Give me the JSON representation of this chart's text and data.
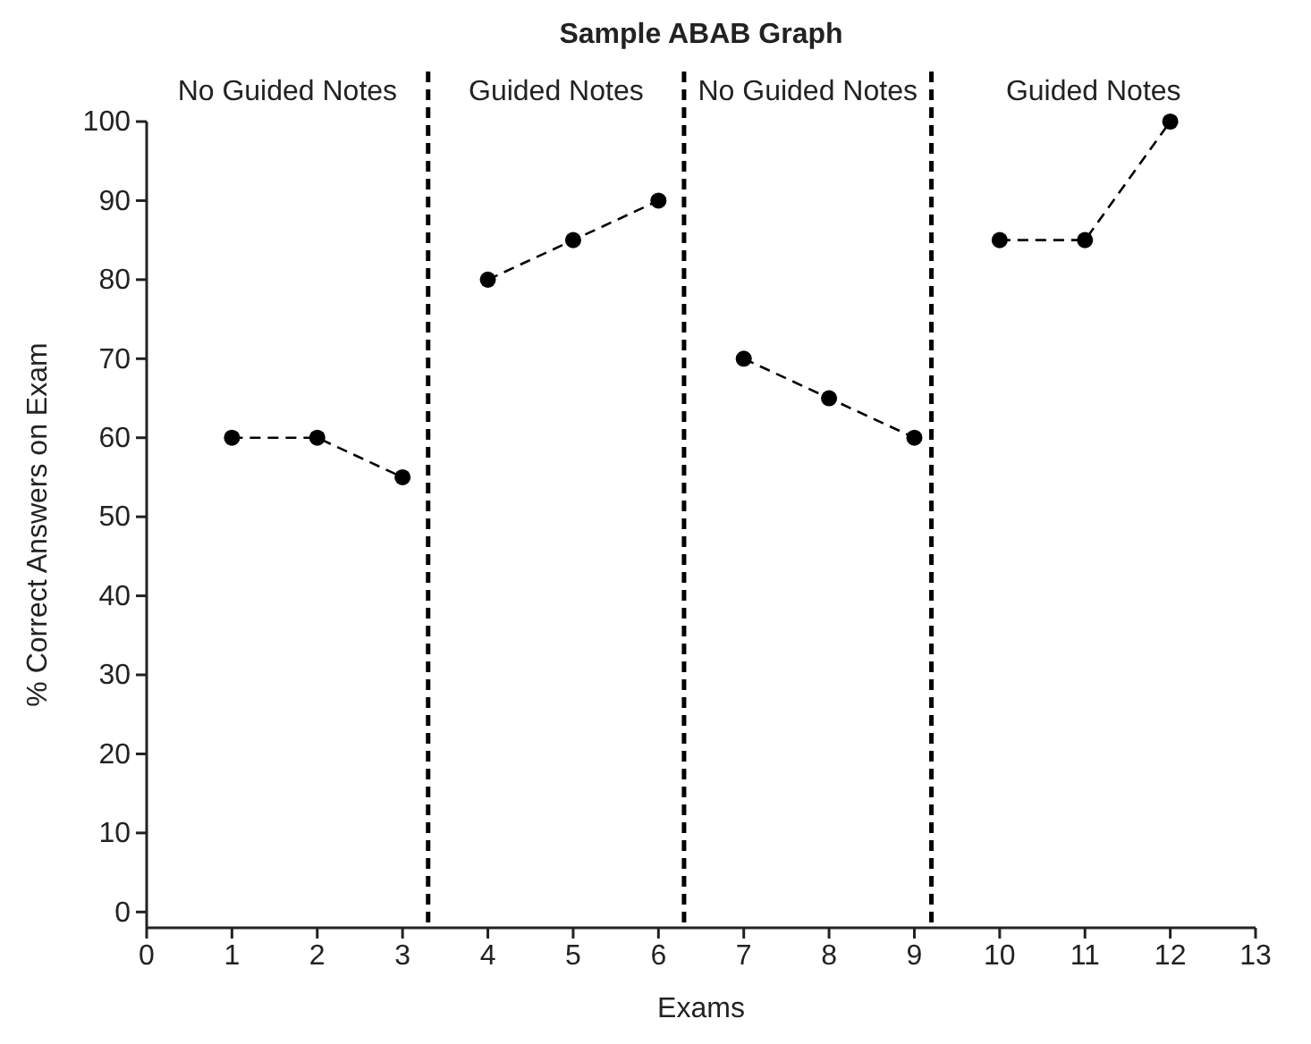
{
  "chart_data": {
    "type": "line",
    "title": "Sample ABAB Graph",
    "xlabel": "Exams",
    "ylabel": "% Correct Answers on Exam",
    "xlim": [
      0,
      13
    ],
    "xticks": [
      0,
      1,
      2,
      3,
      4,
      5,
      6,
      7,
      8,
      9,
      10,
      11,
      12,
      13
    ],
    "ylim": [
      -2,
      100
    ],
    "yticks": [
      0,
      10,
      20,
      30,
      40,
      50,
      60,
      70,
      80,
      90,
      100
    ],
    "series": [
      {
        "color": "#000000",
        "x": [
          1,
          2,
          3
        ],
        "values": [
          60,
          60,
          55
        ]
      },
      {
        "color": "#000000",
        "x": [
          4,
          5,
          6
        ],
        "values": [
          80,
          85,
          90
        ]
      },
      {
        "color": "#000000",
        "x": [
          7,
          8,
          9
        ],
        "values": [
          70,
          65,
          60
        ]
      },
      {
        "color": "#000000",
        "x": [
          10,
          11,
          12
        ],
        "values": [
          85,
          85,
          100
        ]
      }
    ],
    "marker": "circle",
    "line_style": "dashed",
    "grid": false,
    "ref_lines": [
      {
        "axis": "x",
        "value": 3.3,
        "color": "#000000",
        "line_style": "dashed"
      },
      {
        "axis": "x",
        "value": 6.3,
        "color": "#000000",
        "line_style": "dashed"
      },
      {
        "axis": "x",
        "value": 9.2,
        "color": "#000000",
        "line_style": "dashed"
      }
    ],
    "annotations": [
      "No Guided Notes",
      "Guided Notes",
      "No Guided Notes",
      "Guided Notes"
    ]
  }
}
